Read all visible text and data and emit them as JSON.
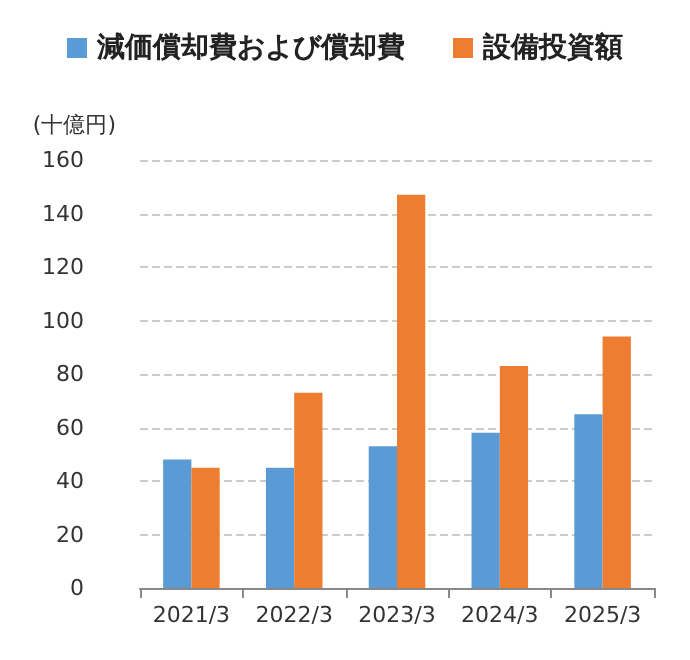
{
  "chart_data": {
    "type": "bar",
    "ylabel": "(十億円)",
    "categories": [
      "2021/3",
      "2022/3",
      "2023/3",
      "2024/3",
      "2025/3"
    ],
    "series": [
      {
        "name": "減価償却費および償却費",
        "color": "#5b9bd5",
        "values": [
          48,
          45,
          53,
          58,
          65
        ]
      },
      {
        "name": "設備投資額",
        "color": "#ed7d31",
        "values": [
          45,
          73,
          147,
          83,
          94
        ]
      }
    ],
    "ylim": [
      0,
      160
    ],
    "yticks": [
      0,
      20,
      40,
      60,
      80,
      100,
      120,
      140,
      160
    ],
    "grid": "y",
    "legend": "top"
  }
}
